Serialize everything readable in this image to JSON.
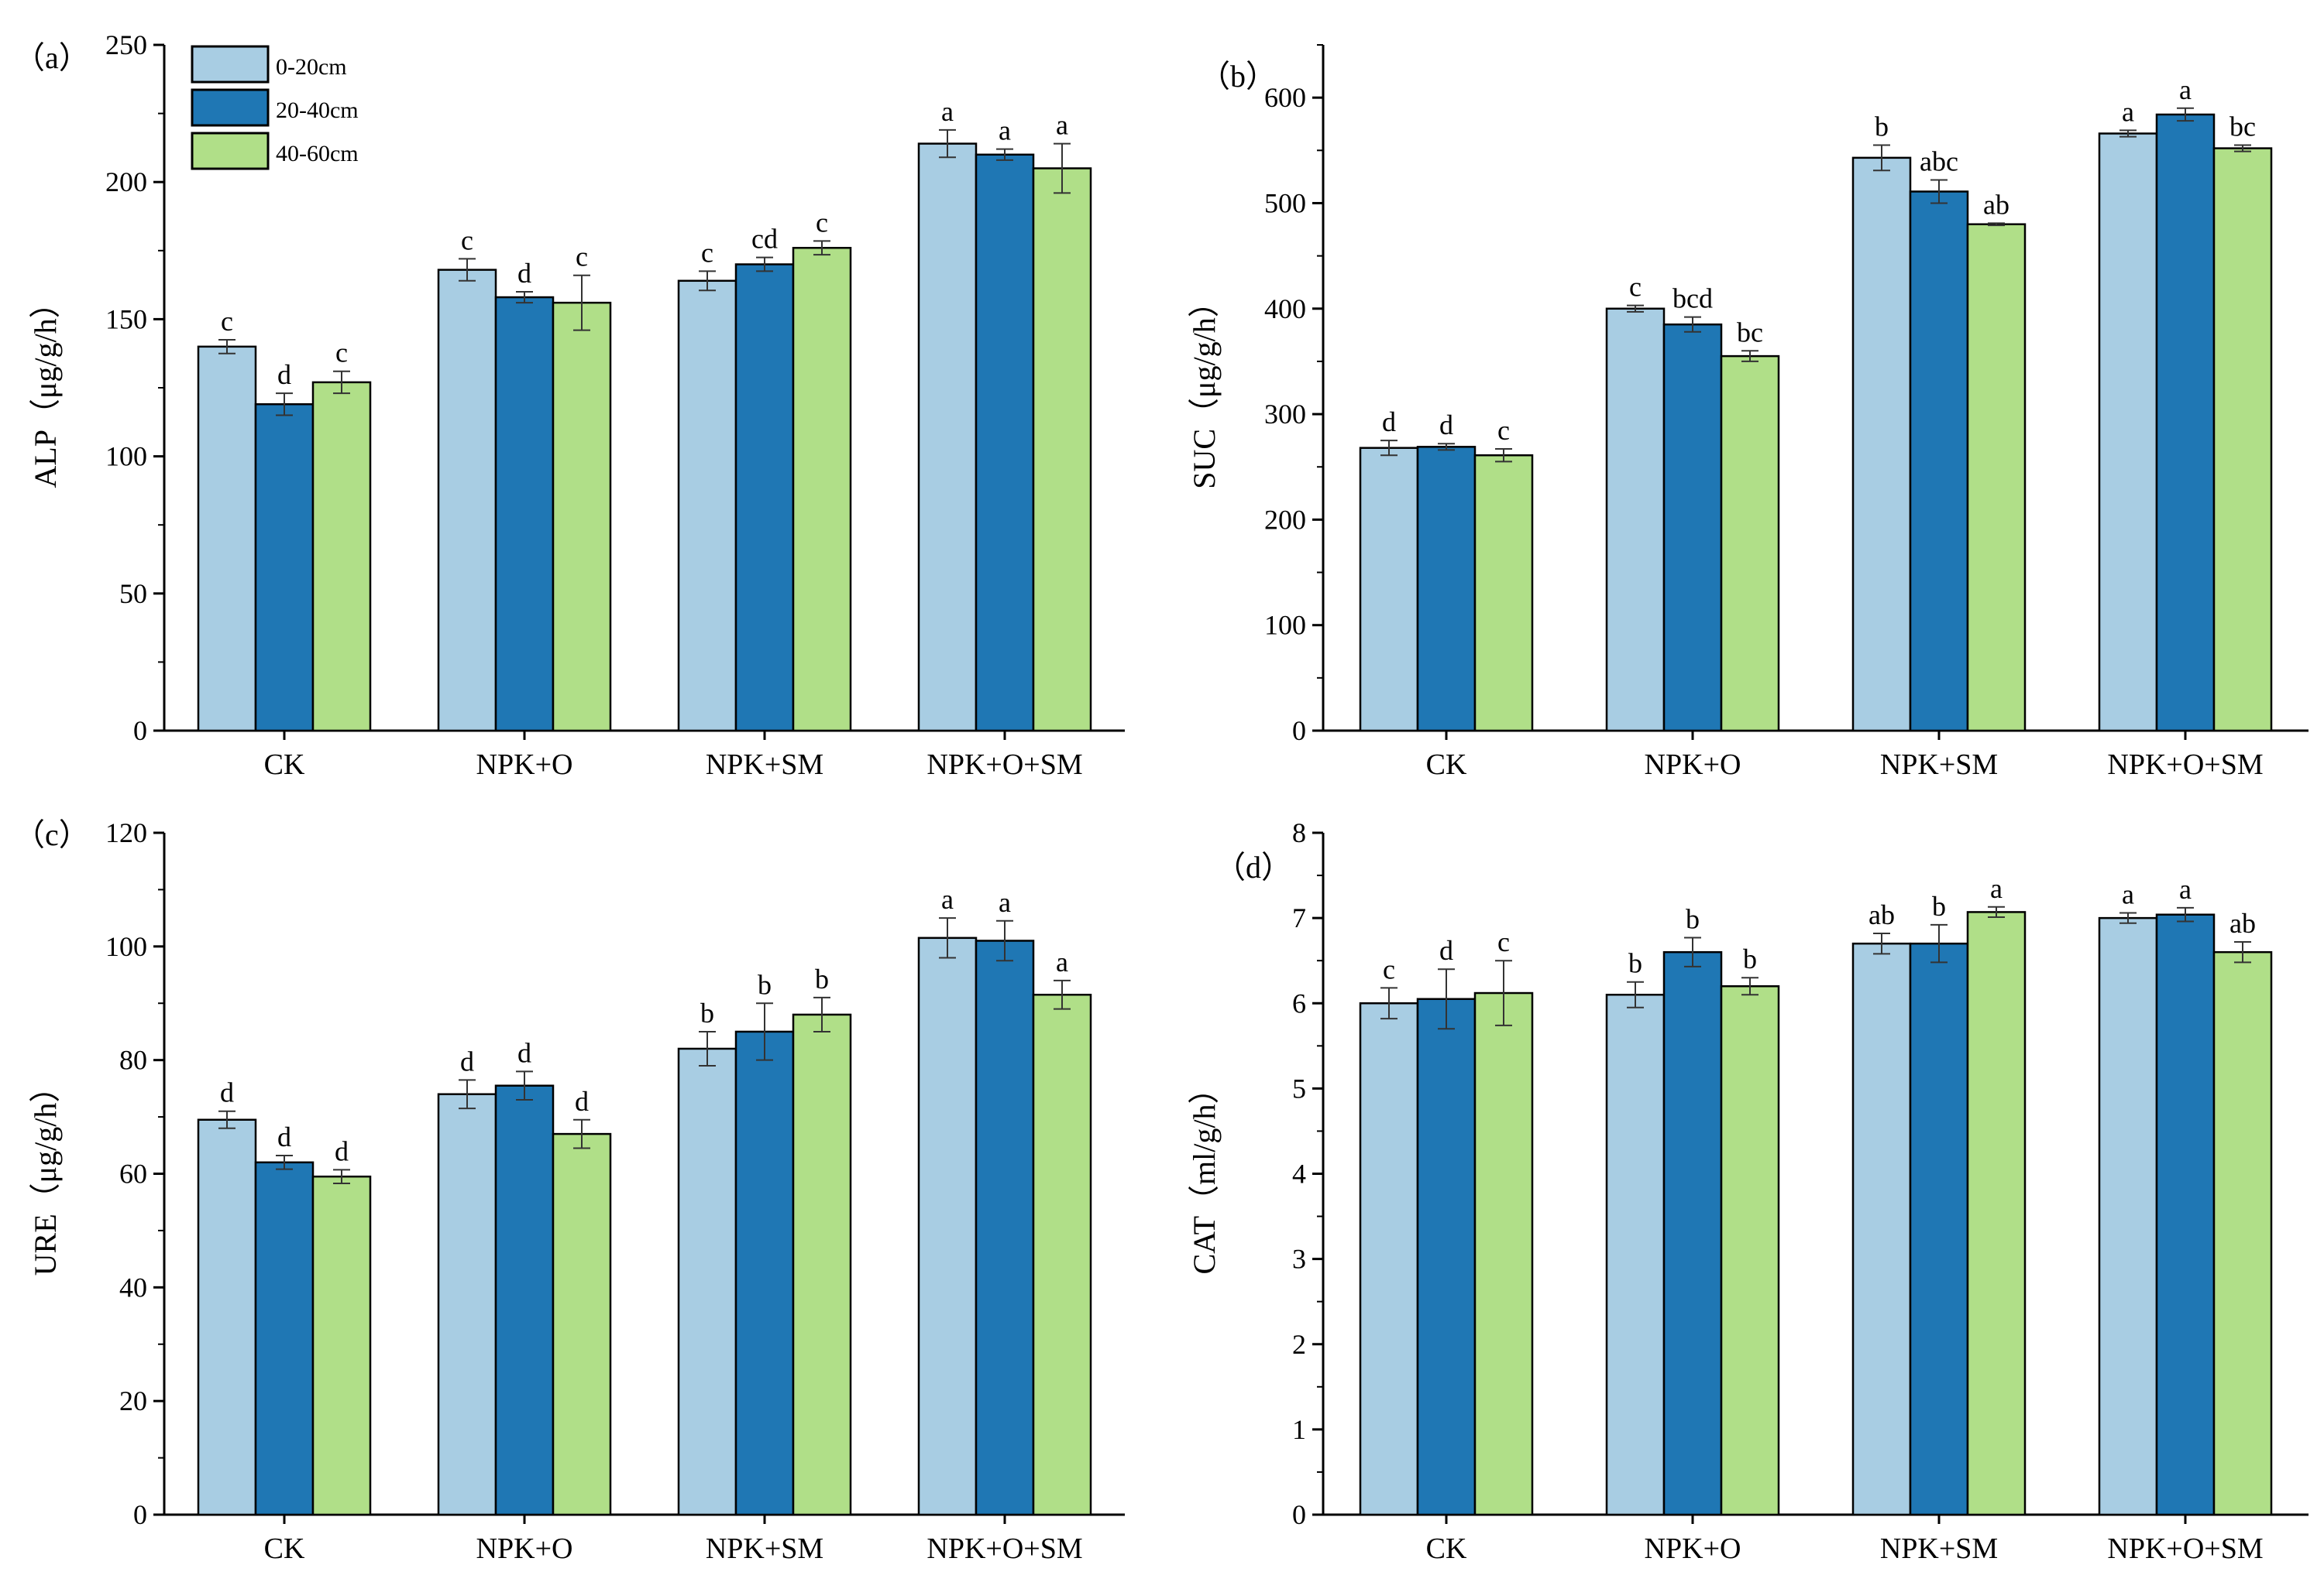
{
  "legend": {
    "entries": [
      "0-20cm",
      "20-40cm",
      "40-60cm"
    ]
  },
  "series_colors": [
    "#a8cde3",
    "#1f77b4",
    "#b0df88"
  ],
  "chart_data": [
    {
      "type": "bar",
      "panel": "（a）",
      "ylabel": "ALP（μg/g/h）",
      "categories": [
        "CK",
        "NPK+O",
        "NPK+SM",
        "NPK+O+SM"
      ],
      "ylim": [
        0,
        250
      ],
      "yticks": [
        0,
        50,
        100,
        150,
        200,
        250
      ],
      "series": [
        {
          "name": "0-20cm",
          "values": [
            140,
            168,
            164,
            214
          ],
          "errors": [
            2.5,
            4,
            3.5,
            5
          ],
          "letters": [
            "c",
            "c",
            "c",
            "a"
          ]
        },
        {
          "name": "20-40cm",
          "values": [
            119,
            158,
            170,
            210
          ],
          "errors": [
            4,
            2,
            2.5,
            2
          ],
          "letters": [
            "d",
            "d",
            "cd",
            "a"
          ]
        },
        {
          "name": "40-60cm",
          "values": [
            127,
            156,
            176,
            205
          ],
          "errors": [
            4,
            10,
            2.5,
            9
          ],
          "letters": [
            "c",
            "c",
            "c",
            "a"
          ]
        }
      ]
    },
    {
      "type": "bar",
      "panel": "（b）",
      "ylabel": "SUC（μg/g/h）",
      "categories": [
        "CK",
        "NPK+O",
        "NPK+SM",
        "NPK+O+SM"
      ],
      "ylim": [
        0,
        650
      ],
      "yticks": [
        0,
        100,
        200,
        300,
        400,
        500,
        600
      ],
      "series": [
        {
          "name": "0-20cm",
          "values": [
            268,
            400,
            543,
            566
          ],
          "errors": [
            7,
            3,
            12,
            3
          ],
          "letters": [
            "d",
            "c",
            "b",
            "a"
          ]
        },
        {
          "name": "20-40cm",
          "values": [
            269,
            385,
            511,
            584
          ],
          "errors": [
            3,
            7,
            11,
            6
          ],
          "letters": [
            "d",
            "bcd",
            "abc",
            "a"
          ]
        },
        {
          "name": "40-60cm",
          "values": [
            261,
            355,
            480,
            552
          ],
          "errors": [
            6,
            5,
            1,
            3
          ],
          "letters": [
            "c",
            "bc",
            "ab",
            "bc"
          ]
        }
      ]
    },
    {
      "type": "bar",
      "panel": "（c）",
      "ylabel": "URE（μg/g/h）",
      "categories": [
        "CK",
        "NPK+O",
        "NPK+SM",
        "NPK+O+SM"
      ],
      "ylim": [
        0,
        120
      ],
      "yticks": [
        0,
        20,
        40,
        60,
        80,
        100,
        120
      ],
      "series": [
        {
          "name": "0-20cm",
          "values": [
            69.5,
            74,
            82,
            101.5
          ],
          "errors": [
            1.5,
            2.5,
            3,
            3.5
          ],
          "letters": [
            "d",
            "d",
            "b",
            "a"
          ]
        },
        {
          "name": "20-40cm",
          "values": [
            62,
            75.5,
            85,
            101
          ],
          "errors": [
            1.2,
            2.5,
            5,
            3.5
          ],
          "letters": [
            "d",
            "d",
            "b",
            "a"
          ]
        },
        {
          "name": "40-60cm",
          "values": [
            59.5,
            67,
            88,
            91.5
          ],
          "errors": [
            1.2,
            2.5,
            3,
            2.5
          ],
          "letters": [
            "d",
            "d",
            "b",
            "a"
          ]
        }
      ]
    },
    {
      "type": "bar",
      "panel": "（d）",
      "ylabel": "CAT（ml/g/h）",
      "categories": [
        "CK",
        "NPK+O",
        "NPK+SM",
        "NPK+O+SM"
      ],
      "ylim": [
        0,
        8
      ],
      "yticks": [
        0,
        1,
        2,
        3,
        4,
        5,
        6,
        7,
        8
      ],
      "series": [
        {
          "name": "0-20cm",
          "values": [
            6.0,
            6.1,
            6.7,
            7.0
          ],
          "errors": [
            0.18,
            0.15,
            0.12,
            0.06
          ],
          "letters": [
            "c",
            "b",
            "ab",
            "a"
          ]
        },
        {
          "name": "20-40cm",
          "values": [
            6.05,
            6.6,
            6.7,
            7.04
          ],
          "errors": [
            0.35,
            0.17,
            0.22,
            0.08
          ],
          "letters": [
            "d",
            "b",
            "b",
            "a"
          ]
        },
        {
          "name": "40-60cm",
          "values": [
            6.12,
            6.2,
            7.07,
            6.6
          ],
          "errors": [
            0.38,
            0.1,
            0.06,
            0.12
          ],
          "letters": [
            "c",
            "b",
            "a",
            "ab"
          ]
        }
      ]
    }
  ]
}
